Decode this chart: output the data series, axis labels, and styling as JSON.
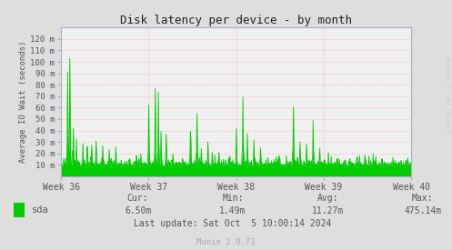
{
  "title": "Disk latency per device - by month",
  "ylabel": "Average IO Wait (seconds)",
  "bg_color": "#dedede",
  "plot_bg_color": "#f0f0f0",
  "line_color": "#00cc00",
  "fill_color": "#00cc00",
  "grid_color": "#ff9999",
  "grid_style": ":",
  "ytick_labels": [
    "10 m",
    "20 m",
    "30 m",
    "40 m",
    "50 m",
    "60 m",
    "70 m",
    "80 m",
    "90 m",
    "100 m",
    "110 m",
    "120 m"
  ],
  "ytick_values": [
    0.01,
    0.02,
    0.03,
    0.04,
    0.05,
    0.06,
    0.07,
    0.08,
    0.09,
    0.1,
    0.11,
    0.12
  ],
  "xtick_labels": [
    "Week 36",
    "Week 37",
    "Week 38",
    "Week 39",
    "Week 40"
  ],
  "legend_label": "sda",
  "legend_color": "#00cc00",
  "cur": "6.50m",
  "min_val": "1.49m",
  "avg": "11.27m",
  "max_val": "475.14m",
  "last_update": "Last update: Sat Oct  5 10:00:14 2024",
  "munin_version": "Munin 2.0.73",
  "watermark": "RRDTOOL / TOBI OETIKER",
  "title_color": "#222222",
  "axis_color": "#aaaacc",
  "label_color": "#555555",
  "stat_color": "#555555",
  "munin_color": "#aaaaaa",
  "watermark_color": "#cccccc",
  "ylim_min": 0.0,
  "ylim_max": 0.13,
  "num_points": 800
}
